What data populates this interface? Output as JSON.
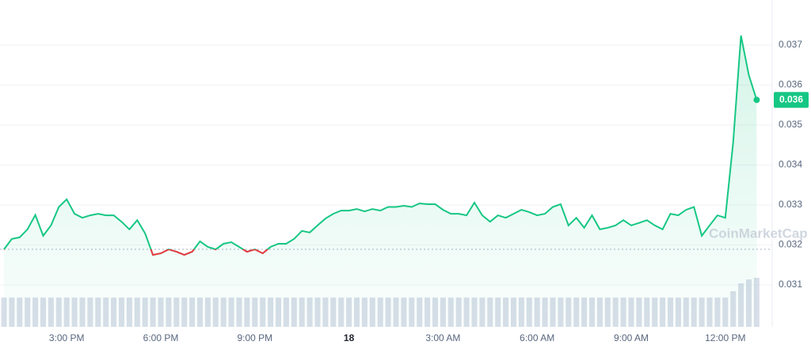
{
  "chart_data": {
    "type": "line",
    "categories": [
      null,
      null,
      null,
      null,
      null,
      null,
      null,
      null,
      "3:00 PM",
      null,
      null,
      null,
      null,
      null,
      null,
      null,
      null,
      null,
      null,
      null,
      "6:00 PM",
      null,
      null,
      null,
      null,
      null,
      null,
      null,
      null,
      null,
      null,
      null,
      "9:00 PM",
      null,
      null,
      null,
      null,
      null,
      null,
      null,
      null,
      null,
      null,
      null,
      "18",
      null,
      null,
      null,
      null,
      null,
      null,
      null,
      null,
      null,
      null,
      null,
      "3:00 AM",
      null,
      null,
      null,
      null,
      null,
      null,
      null,
      null,
      null,
      null,
      null,
      "6:00 AM",
      null,
      null,
      null,
      null,
      null,
      null,
      null,
      null,
      null,
      null,
      null,
      "9:00 AM",
      null,
      null,
      null,
      null,
      null,
      null,
      null,
      null,
      null,
      null,
      null,
      "12:00 PM",
      null,
      null,
      null,
      null
    ],
    "values": [
      0.03189,
      0.03215,
      0.03219,
      0.03239,
      0.03275,
      0.03223,
      0.03249,
      0.03295,
      0.03314,
      0.03278,
      0.03268,
      0.03274,
      0.03278,
      0.03274,
      0.03274,
      0.03258,
      0.03239,
      0.03262,
      0.03229,
      0.03175,
      0.03179,
      0.03189,
      0.03183,
      0.03175,
      0.03183,
      0.03209,
      0.03195,
      0.03189,
      0.03203,
      0.03207,
      0.03195,
      0.03183,
      0.03189,
      0.03179,
      0.03195,
      0.03203,
      0.03203,
      0.03215,
      0.03235,
      0.03231,
      0.03249,
      0.03266,
      0.03278,
      0.03286,
      0.03286,
      0.0329,
      0.03284,
      0.0329,
      0.03286,
      0.03295,
      0.03295,
      0.03298,
      0.03295,
      0.03304,
      0.03302,
      0.03302,
      0.03288,
      0.03278,
      0.03278,
      0.03274,
      0.03306,
      0.03274,
      0.03258,
      0.03274,
      0.03268,
      0.03278,
      0.03288,
      0.03282,
      0.03274,
      0.03278,
      0.03295,
      0.03302,
      0.03249,
      0.03268,
      0.03243,
      0.03274,
      0.03239,
      0.03243,
      0.03249,
      0.03262,
      0.03249,
      0.03255,
      0.03262,
      0.03249,
      0.03239,
      0.03278,
      0.03274,
      0.03288,
      0.03295,
      0.03223,
      0.03249,
      0.03274,
      0.03268,
      0.03456,
      0.03724,
      0.03625,
      0.03563
    ],
    "volume": [
      37,
      37,
      37,
      37,
      37,
      37,
      37,
      37,
      37,
      37,
      37,
      37,
      37,
      37,
      37,
      37,
      37,
      37,
      37,
      37,
      37,
      37,
      37,
      37,
      37,
      37,
      37,
      37,
      37,
      37,
      37,
      37,
      37,
      37,
      37,
      37,
      37,
      37,
      37,
      37,
      37,
      37,
      37,
      37,
      37,
      37,
      37,
      37,
      37,
      37,
      37,
      37,
      37,
      37,
      37,
      37,
      37,
      37,
      37,
      37,
      37,
      37,
      37,
      37,
      37,
      37,
      37,
      37,
      37,
      37,
      37,
      37,
      37,
      37,
      37,
      37,
      37,
      37,
      37,
      37,
      37,
      37,
      37,
      37,
      37,
      37,
      37,
      37,
      37,
      37,
      37,
      37,
      37,
      45,
      55,
      60,
      62
    ],
    "baseline": 0.03189,
    "last_price_label": "0.036",
    "watermark": "CoinMarketCap",
    "color": "#16c784",
    "down_color": "#ea3943",
    "volume_color": "#cfd6e4",
    "ylim": [
      0.02995,
      0.03813
    ],
    "yticks": [
      0.031,
      0.032,
      0.033,
      0.034,
      0.035,
      0.036,
      0.037
    ],
    "grid": true
  }
}
